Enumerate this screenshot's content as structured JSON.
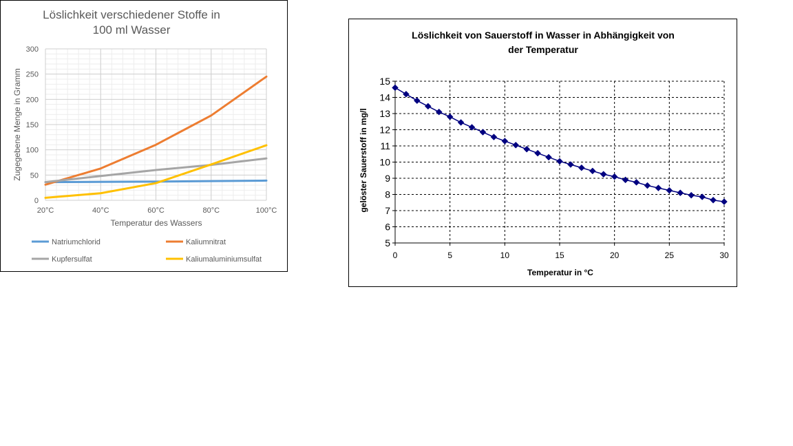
{
  "chart_data": [
    {
      "type": "line",
      "title_lines": [
        "Löslichkeit verschiedener Stoffe in",
        "100 ml Wasser"
      ],
      "xlabel": "Temperatur des Wassers",
      "ylabel": "Zugegebene Menge in Gramm",
      "categories": [
        "20°C",
        "40°C",
        "60°C",
        "80°C",
        "100°C"
      ],
      "ylim": [
        0,
        300
      ],
      "yticks": [
        0,
        50,
        100,
        150,
        200,
        250,
        300
      ],
      "grid": true,
      "legend_position": "bottom",
      "series": [
        {
          "name": "Natriumchlorid",
          "color": "#5b9bd5",
          "values": [
            36,
            36.5,
            37,
            38,
            39
          ]
        },
        {
          "name": "Kaliumnitrat",
          "color": "#ed7d31",
          "values": [
            31,
            63,
            110,
            168,
            245
          ]
        },
        {
          "name": "Kupfersulfat",
          "color": "#a5a5a5",
          "values": [
            36,
            48,
            60,
            70,
            83
          ]
        },
        {
          "name": "Kaliumaluminiumsulfat",
          "color": "#ffc000",
          "values": [
            5,
            14,
            34,
            71,
            109
          ]
        }
      ]
    },
    {
      "type": "line",
      "title_lines": [
        "Löslichkeit von Sauerstoff in Wasser in Abhängigkeit von",
        "der Temperatur"
      ],
      "xlabel": "Temperatur in °C",
      "ylabel": "gelöster Sauerstoff in mg/l",
      "xlim": [
        0,
        30
      ],
      "xticks": [
        0,
        5,
        10,
        15,
        20,
        25,
        30
      ],
      "ylim": [
        5,
        15
      ],
      "yticks": [
        5,
        6,
        7,
        8,
        9,
        10,
        11,
        12,
        13,
        14,
        15
      ],
      "grid": true,
      "series": [
        {
          "color": "#000080",
          "x": [
            0,
            1,
            2,
            3,
            4,
            5,
            6,
            7,
            8,
            9,
            10,
            11,
            12,
            13,
            14,
            15,
            16,
            17,
            18,
            19,
            20,
            21,
            22,
            23,
            24,
            25,
            26,
            27,
            28,
            29,
            30
          ],
          "values": [
            14.6,
            14.2,
            13.8,
            13.45,
            13.1,
            12.8,
            12.45,
            12.15,
            11.85,
            11.55,
            11.3,
            11.05,
            10.8,
            10.55,
            10.3,
            10.05,
            9.85,
            9.65,
            9.45,
            9.25,
            9.1,
            8.9,
            8.75,
            8.55,
            8.4,
            8.25,
            8.1,
            7.95,
            7.85,
            7.65,
            7.55
          ]
        }
      ]
    }
  ]
}
